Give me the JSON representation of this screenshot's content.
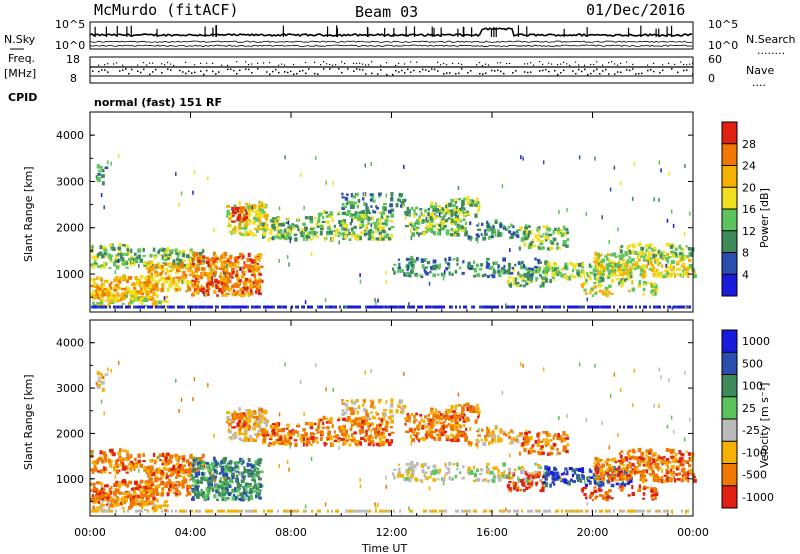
{
  "header": {
    "station": "McMurdo (fitACF)",
    "beam": "Beam 03",
    "date": "01/Dec/2016"
  },
  "side_labels": {
    "nsky": "N.Sky",
    "freq": "Freq.",
    "mhz": "[MHz]",
    "cpid": "CPID",
    "nsearch": "N.Search",
    "nsearch_dots": "........",
    "nave": "Nave",
    "nave_dots": "...."
  },
  "noise_axis": {
    "top": "10^5",
    "bottom": "10^0",
    "right_top": "10^5",
    "right_bottom": "10^0"
  },
  "freq_axis": {
    "top": "18",
    "bottom": "8",
    "right_top": "60",
    "right_bottom": "0"
  },
  "cpid_text": "normal (fast) 151 RF",
  "colors": {
    "power_scale": [
      "#1a1adc",
      "#2a4db0",
      "#3d8a5a",
      "#5cc45c",
      "#f0e020",
      "#f5b000",
      "#f07800",
      "#e02010"
    ],
    "velocity_scale": [
      "#1a1adc",
      "#2a4db0",
      "#3d8a5a",
      "#5cc45c",
      "#bbbbbb",
      "#f5b000",
      "#f07800",
      "#e02010"
    ]
  },
  "chart_data": [
    {
      "type": "heatmap",
      "name": "power",
      "ylabel": "Slant Range [km]",
      "xlabel": "Time UT",
      "ylim": [
        180,
        4500
      ],
      "xlim": [
        "00:00",
        "24:00"
      ],
      "yticks": [
        "1000",
        "2000",
        "3000",
        "4000"
      ],
      "xticks": [
        "00:00",
        "04:00",
        "08:00",
        "12:00",
        "16:00",
        "20:00",
        "00:00"
      ],
      "colorbar": {
        "label": "Power [dB]",
        "ticks": [
          "4",
          "8",
          "12",
          "16",
          "20",
          "24",
          "28"
        ],
        "range": [
          0,
          30
        ]
      }
    },
    {
      "type": "heatmap",
      "name": "velocity",
      "ylabel": "Slant Range [km]",
      "xlabel": "Time UT",
      "ylim": [
        180,
        4500
      ],
      "xlim": [
        "00:00",
        "24:00"
      ],
      "yticks": [
        "1000",
        "2000",
        "3000",
        "4000"
      ],
      "xticks": [
        "00:00",
        "04:00",
        "08:00",
        "12:00",
        "16:00",
        "20:00",
        "00:00"
      ],
      "colorbar": {
        "label": "Velocity [m s⁻¹]",
        "ticks": [
          "1000",
          "500",
          "100",
          "25",
          "-25",
          "-100",
          "-500",
          "-1000"
        ]
      }
    }
  ]
}
